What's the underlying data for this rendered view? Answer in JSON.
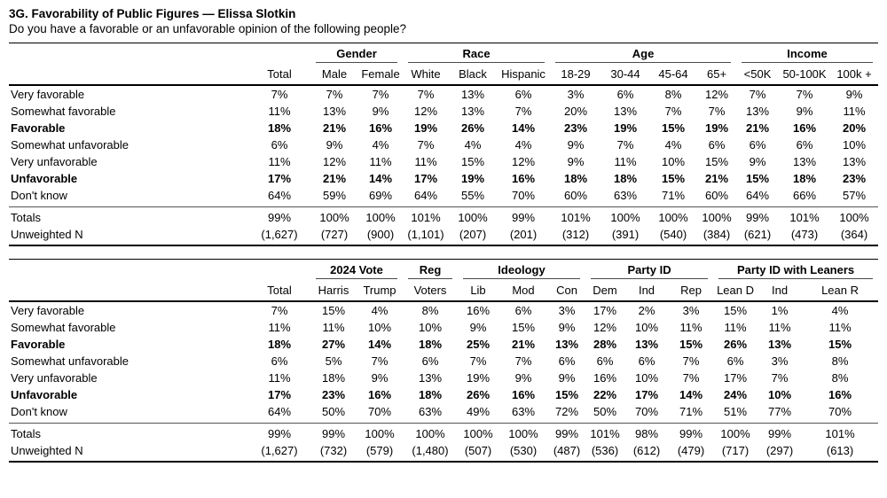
{
  "page": {
    "title": "3G. Favorability of Public Figures — Elissa Slotkin",
    "subtitle": "Do you have a favorable or an unfavorable opinion of the following people?"
  },
  "text_color": "#000000",
  "rule_color": "#000000",
  "tables": [
    {
      "groups": [
        {
          "label": "Gender",
          "span": 2
        },
        {
          "label": "Race",
          "span": 3
        },
        {
          "label": "Age",
          "span": 4
        },
        {
          "label": "Income",
          "span": 3
        }
      ],
      "columns": [
        "Total",
        "Male",
        "Female",
        "White",
        "Black",
        "Hispanic",
        "18-29",
        "30-44",
        "45-64",
        "65+",
        "<50K",
        "50-100K",
        "100k +"
      ],
      "rows": [
        {
          "label": "Very favorable",
          "bold": false,
          "values": [
            "7%",
            "7%",
            "7%",
            "7%",
            "13%",
            "6%",
            "3%",
            "6%",
            "8%",
            "12%",
            "7%",
            "7%",
            "9%"
          ]
        },
        {
          "label": "Somewhat favorable",
          "bold": false,
          "values": [
            "11%",
            "13%",
            "9%",
            "12%",
            "13%",
            "7%",
            "20%",
            "13%",
            "7%",
            "7%",
            "13%",
            "9%",
            "11%"
          ]
        },
        {
          "label": "Favorable",
          "bold": true,
          "values": [
            "18%",
            "21%",
            "16%",
            "19%",
            "26%",
            "14%",
            "23%",
            "19%",
            "15%",
            "19%",
            "21%",
            "16%",
            "20%"
          ]
        },
        {
          "label": "Somewhat unfavorable",
          "bold": false,
          "values": [
            "6%",
            "9%",
            "4%",
            "7%",
            "4%",
            "4%",
            "9%",
            "7%",
            "4%",
            "6%",
            "6%",
            "6%",
            "10%"
          ]
        },
        {
          "label": "Very unfavorable",
          "bold": false,
          "values": [
            "11%",
            "12%",
            "11%",
            "11%",
            "15%",
            "12%",
            "9%",
            "11%",
            "10%",
            "15%",
            "9%",
            "13%",
            "13%"
          ]
        },
        {
          "label": "Unfavorable",
          "bold": true,
          "values": [
            "17%",
            "21%",
            "14%",
            "17%",
            "19%",
            "16%",
            "18%",
            "18%",
            "15%",
            "21%",
            "15%",
            "18%",
            "23%"
          ]
        },
        {
          "label": "Don't know",
          "bold": false,
          "values": [
            "64%",
            "59%",
            "69%",
            "64%",
            "55%",
            "70%",
            "60%",
            "63%",
            "71%",
            "60%",
            "64%",
            "66%",
            "57%"
          ]
        }
      ],
      "footer": [
        {
          "label": "Totals",
          "values": [
            "99%",
            "100%",
            "100%",
            "101%",
            "100%",
            "99%",
            "101%",
            "100%",
            "100%",
            "100%",
            "99%",
            "101%",
            "100%"
          ]
        },
        {
          "label": "Unweighted N",
          "values": [
            "(1,627)",
            "(727)",
            "(900)",
            "(1,101)",
            "(207)",
            "(201)",
            "(312)",
            "(391)",
            "(540)",
            "(384)",
            "(621)",
            "(473)",
            "(364)"
          ]
        }
      ]
    },
    {
      "groups": [
        {
          "label": "2024 Vote",
          "span": 2
        },
        {
          "label": "Reg",
          "span": 1
        },
        {
          "label": "Ideology",
          "span": 3
        },
        {
          "label": "Party ID",
          "span": 3
        },
        {
          "label": "Party ID with Leaners",
          "span": 3
        }
      ],
      "columns": [
        "Total",
        "Harris",
        "Trump",
        "Voters",
        "Lib",
        "Mod",
        "Con",
        "Dem",
        "Ind",
        "Rep",
        "Lean D",
        "Ind",
        "Lean R"
      ],
      "rows": [
        {
          "label": "Very favorable",
          "bold": false,
          "values": [
            "7%",
            "15%",
            "4%",
            "8%",
            "16%",
            "6%",
            "3%",
            "17%",
            "2%",
            "3%",
            "15%",
            "1%",
            "4%"
          ]
        },
        {
          "label": "Somewhat favorable",
          "bold": false,
          "values": [
            "11%",
            "11%",
            "10%",
            "10%",
            "9%",
            "15%",
            "9%",
            "12%",
            "10%",
            "11%",
            "11%",
            "11%",
            "11%"
          ]
        },
        {
          "label": "Favorable",
          "bold": true,
          "values": [
            "18%",
            "27%",
            "14%",
            "18%",
            "25%",
            "21%",
            "13%",
            "28%",
            "13%",
            "15%",
            "26%",
            "13%",
            "15%"
          ]
        },
        {
          "label": "Somewhat unfavorable",
          "bold": false,
          "values": [
            "6%",
            "5%",
            "7%",
            "6%",
            "7%",
            "7%",
            "6%",
            "6%",
            "6%",
            "7%",
            "6%",
            "3%",
            "8%"
          ]
        },
        {
          "label": "Very unfavorable",
          "bold": false,
          "values": [
            "11%",
            "18%",
            "9%",
            "13%",
            "19%",
            "9%",
            "9%",
            "16%",
            "10%",
            "7%",
            "17%",
            "7%",
            "8%"
          ]
        },
        {
          "label": "Unfavorable",
          "bold": true,
          "values": [
            "17%",
            "23%",
            "16%",
            "18%",
            "26%",
            "16%",
            "15%",
            "22%",
            "17%",
            "14%",
            "24%",
            "10%",
            "16%"
          ]
        },
        {
          "label": "Don't know",
          "bold": false,
          "values": [
            "64%",
            "50%",
            "70%",
            "63%",
            "49%",
            "63%",
            "72%",
            "50%",
            "70%",
            "71%",
            "51%",
            "77%",
            "70%"
          ]
        }
      ],
      "footer": [
        {
          "label": "Totals",
          "values": [
            "99%",
            "99%",
            "100%",
            "100%",
            "100%",
            "100%",
            "99%",
            "101%",
            "98%",
            "99%",
            "100%",
            "99%",
            "101%"
          ]
        },
        {
          "label": "Unweighted N",
          "values": [
            "(1,627)",
            "(732)",
            "(579)",
            "(1,480)",
            "(507)",
            "(530)",
            "(487)",
            "(536)",
            "(612)",
            "(479)",
            "(717)",
            "(297)",
            "(613)"
          ]
        }
      ]
    }
  ]
}
